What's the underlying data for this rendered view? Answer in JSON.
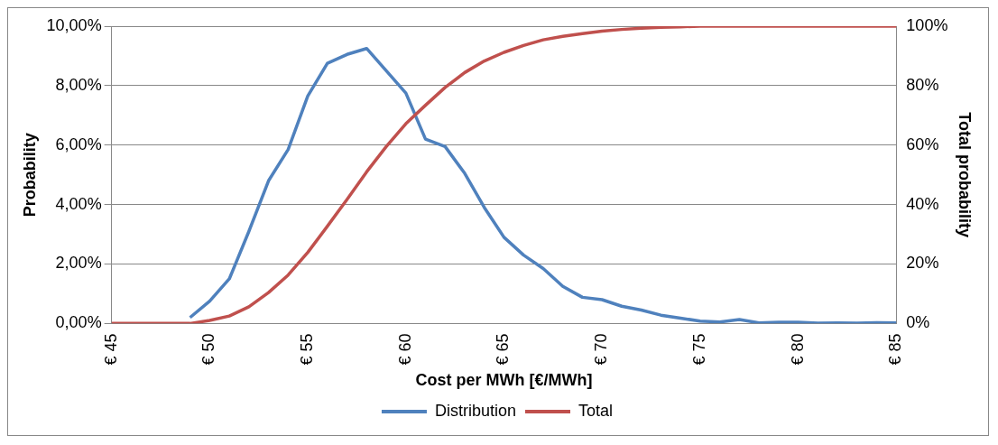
{
  "chart_data": {
    "type": "line",
    "xlabel": "Cost per MWh [€/MWh]",
    "ylabel": "Probability",
    "y2label": "Total probability",
    "x": [
      45,
      46,
      47,
      48,
      49,
      50,
      51,
      52,
      53,
      54,
      55,
      56,
      57,
      58,
      59,
      60,
      61,
      62,
      63,
      64,
      65,
      66,
      67,
      68,
      69,
      70,
      71,
      72,
      73,
      74,
      75,
      76,
      77,
      78,
      79,
      80,
      81,
      82,
      83,
      84,
      85
    ],
    "xlim": [
      45,
      85
    ],
    "xticks": [
      {
        "value": 45,
        "label": "€ 45"
      },
      {
        "value": 50,
        "label": "€ 50"
      },
      {
        "value": 55,
        "label": "€ 55"
      },
      {
        "value": 60,
        "label": "€ 60"
      },
      {
        "value": 65,
        "label": "€ 65"
      },
      {
        "value": 70,
        "label": "€ 70"
      },
      {
        "value": 75,
        "label": "€ 75"
      },
      {
        "value": 80,
        "label": "€ 80"
      },
      {
        "value": 85,
        "label": "€ 85"
      }
    ],
    "ylim": [
      0,
      10
    ],
    "yticks": [
      {
        "value": 0,
        "label": "0,00%"
      },
      {
        "value": 2,
        "label": "2,00%"
      },
      {
        "value": 4,
        "label": "4,00%"
      },
      {
        "value": 6,
        "label": "6,00%"
      },
      {
        "value": 8,
        "label": "8,00%"
      },
      {
        "value": 10,
        "label": "10,00%"
      }
    ],
    "y2lim": [
      0,
      100
    ],
    "y2ticks": [
      {
        "value": 0,
        "label": "0%"
      },
      {
        "value": 20,
        "label": "20%"
      },
      {
        "value": 40,
        "label": "40%"
      },
      {
        "value": 60,
        "label": "60%"
      },
      {
        "value": 80,
        "label": "80%"
      },
      {
        "value": 100,
        "label": "100%"
      }
    ],
    "series": [
      {
        "name": "Distribution",
        "color": "#4f81bd",
        "values": [
          null,
          null,
          null,
          null,
          0.2,
          0.75,
          1.5,
          3.1,
          4.8,
          5.85,
          7.65,
          8.75,
          9.05,
          9.25,
          8.5,
          7.75,
          6.2,
          5.95,
          5.05,
          3.9,
          2.9,
          2.3,
          1.85,
          1.25,
          0.88,
          0.8,
          0.58,
          0.45,
          0.28,
          0.18,
          0.08,
          0.05,
          0.13,
          0.02,
          0.04,
          0.04,
          0.01,
          0.02,
          0.01,
          0.03,
          0.02
        ]
      },
      {
        "name": "Total",
        "color": "#c0504d",
        "axis": "y2",
        "values": [
          0,
          0,
          0,
          0,
          0,
          1,
          2.5,
          5.6,
          10.4,
          16.3,
          23.9,
          32.7,
          41.7,
          51,
          59.5,
          67.2,
          73.4,
          79.4,
          84.4,
          88.3,
          91.2,
          93.5,
          95.4,
          96.6,
          97.5,
          98.3,
          98.9,
          99.3,
          99.6,
          99.8,
          100,
          100,
          100,
          100,
          100,
          100,
          100,
          100,
          100,
          100,
          100
        ]
      }
    ],
    "grid": "y",
    "legend": "bottom",
    "marker": "none",
    "line_style": "solid"
  }
}
